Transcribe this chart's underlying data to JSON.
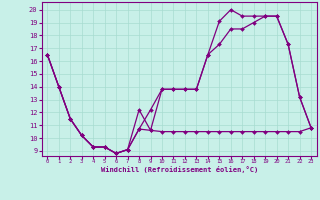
{
  "xlabel": "Windchill (Refroidissement éolien,°C)",
  "bg_color": "#c8f0e8",
  "line_color": "#800080",
  "grid_color": "#a8dcd0",
  "x_ticks": [
    0,
    1,
    2,
    3,
    4,
    5,
    6,
    7,
    8,
    9,
    10,
    11,
    12,
    13,
    14,
    15,
    16,
    17,
    18,
    19,
    20,
    21,
    22,
    23
  ],
  "y_ticks": [
    9,
    10,
    11,
    12,
    13,
    14,
    15,
    16,
    17,
    18,
    19,
    20
  ],
  "ylim": [
    8.6,
    20.6
  ],
  "xlim": [
    -0.5,
    23.5
  ],
  "series": [
    {
      "x": [
        0,
        1,
        2,
        3,
        4,
        5,
        6,
        7,
        8,
        9,
        10,
        11,
        12,
        13,
        14,
        15,
        16,
        17,
        18,
        19,
        20,
        21,
        22,
        23
      ],
      "y": [
        16.5,
        14.0,
        11.5,
        10.2,
        9.3,
        9.3,
        8.8,
        9.1,
        10.7,
        10.6,
        10.5,
        10.5,
        10.5,
        10.5,
        10.5,
        10.5,
        10.5,
        10.5,
        10.5,
        10.5,
        10.5,
        10.5,
        10.5,
        10.8
      ]
    },
    {
      "x": [
        0,
        1,
        2,
        3,
        4,
        5,
        6,
        7,
        8,
        9,
        10,
        11,
        12,
        13,
        14,
        15,
        16,
        17,
        18,
        19,
        20,
        21,
        22,
        23
      ],
      "y": [
        16.5,
        14.0,
        11.5,
        10.2,
        9.3,
        9.3,
        8.8,
        9.1,
        10.7,
        12.2,
        13.8,
        13.8,
        13.8,
        13.8,
        16.5,
        19.1,
        20.0,
        19.5,
        19.5,
        19.5,
        19.5,
        17.3,
        13.2,
        10.8
      ]
    },
    {
      "x": [
        0,
        1,
        2,
        3,
        4,
        5,
        6,
        7,
        8,
        9,
        10,
        11,
        12,
        13,
        14,
        15,
        16,
        17,
        18,
        19,
        20,
        21,
        22,
        23
      ],
      "y": [
        16.5,
        14.0,
        11.5,
        10.2,
        9.3,
        9.3,
        8.8,
        9.1,
        12.2,
        10.6,
        13.8,
        13.8,
        13.8,
        13.8,
        16.5,
        17.3,
        18.5,
        18.5,
        19.0,
        19.5,
        19.5,
        17.3,
        13.2,
        10.8
      ]
    }
  ]
}
